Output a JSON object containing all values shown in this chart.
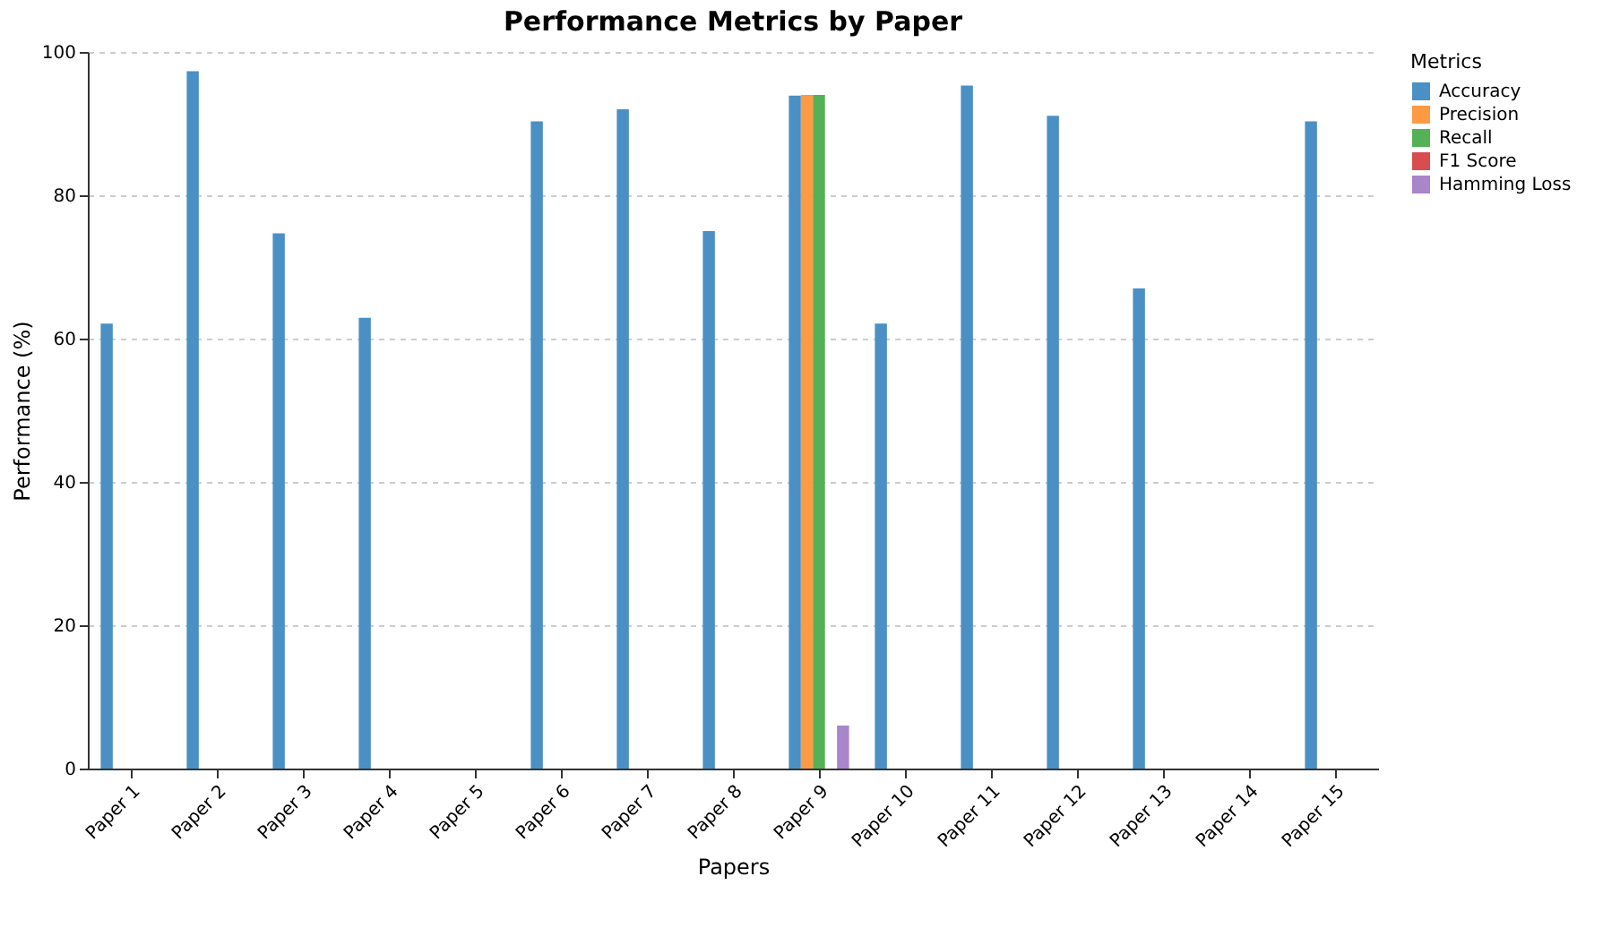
{
  "chart_data": {
    "type": "bar",
    "title": "Performance Metrics by Paper",
    "xlabel": "Papers",
    "ylabel": "Performance (%)",
    "legend_title": "Metrics",
    "categories": [
      "Paper 1",
      "Paper 2",
      "Paper 3",
      "Paper 4",
      "Paper 5",
      "Paper 6",
      "Paper 7",
      "Paper 8",
      "Paper 9",
      "Paper 10",
      "Paper 11",
      "Paper 12",
      "Paper 13",
      "Paper 14",
      "Paper 15"
    ],
    "series": [
      {
        "name": "Accuracy",
        "color": "#4a90c4",
        "values": [
          62.1,
          97.3,
          74.7,
          62.9,
          null,
          90.3,
          92.0,
          75.0,
          93.9,
          62.1,
          95.3,
          91.1,
          67.0,
          null,
          90.3
        ]
      },
      {
        "name": "Precision",
        "color": "#fd9a44",
        "values": [
          null,
          null,
          null,
          null,
          null,
          null,
          null,
          null,
          94.0,
          null,
          null,
          null,
          null,
          null,
          null
        ]
      },
      {
        "name": "Recall",
        "color": "#55b155",
        "values": [
          null,
          null,
          null,
          null,
          null,
          null,
          null,
          null,
          94.0,
          null,
          null,
          null,
          null,
          null,
          null
        ]
      },
      {
        "name": "F1 Score",
        "color": "#d94d4e",
        "values": [
          null,
          null,
          null,
          null,
          null,
          null,
          null,
          null,
          null,
          null,
          null,
          null,
          null,
          null,
          null
        ]
      },
      {
        "name": "Hamming Loss",
        "color": "#a985c9",
        "values": [
          null,
          null,
          null,
          null,
          null,
          null,
          null,
          null,
          6.0,
          null,
          null,
          null,
          null,
          null,
          null
        ]
      }
    ],
    "ylim": [
      0,
      100
    ],
    "yticks": [
      0,
      20,
      40,
      60,
      80,
      100
    ],
    "grid": "y",
    "legend": "right"
  }
}
